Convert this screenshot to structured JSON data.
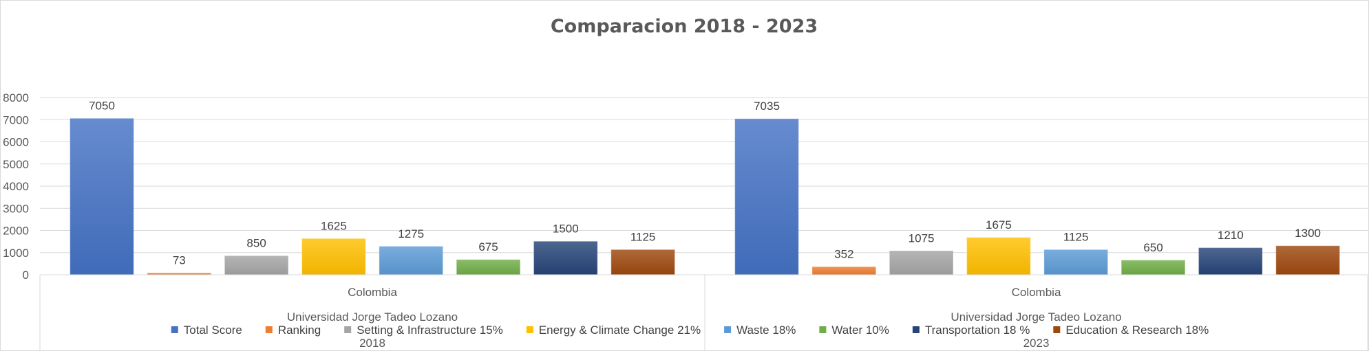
{
  "chart_data": {
    "type": "bar",
    "title": "Comparacion 2018 - 2023",
    "ylim": [
      0,
      8000
    ],
    "yticks": [
      0,
      1000,
      2000,
      3000,
      4000,
      5000,
      6000,
      7000,
      8000
    ],
    "grid": true,
    "legend_position": "bottom",
    "country_label": "Colombia",
    "university_label": "Universidad Jorge Tadeo Lozano",
    "groups": [
      "2018",
      "2023"
    ],
    "series": [
      {
        "name": "Total Score",
        "color": "#4472C4",
        "values": [
          7050,
          7035
        ]
      },
      {
        "name": "Ranking",
        "color": "#ED7D31",
        "values": [
          73,
          352
        ]
      },
      {
        "name": "Setting & Infrastructure 15%",
        "color": "#A5A5A5",
        "values": [
          850,
          1075
        ]
      },
      {
        "name": "Energy & Climate Change  21%",
        "color": "#FFC000",
        "values": [
          1625,
          1675
        ]
      },
      {
        "name": "Waste  18%",
        "color": "#5B9BD5",
        "values": [
          1275,
          1125
        ]
      },
      {
        "name": "Water 10%",
        "color": "#70AD47",
        "values": [
          675,
          650
        ]
      },
      {
        "name": "Transportation  18 %",
        "color": "#264478",
        "values": [
          1500,
          1210
        ]
      },
      {
        "name": "Education & Research 18%",
        "color": "#9E480E",
        "values": [
          1125,
          1300
        ]
      }
    ]
  }
}
